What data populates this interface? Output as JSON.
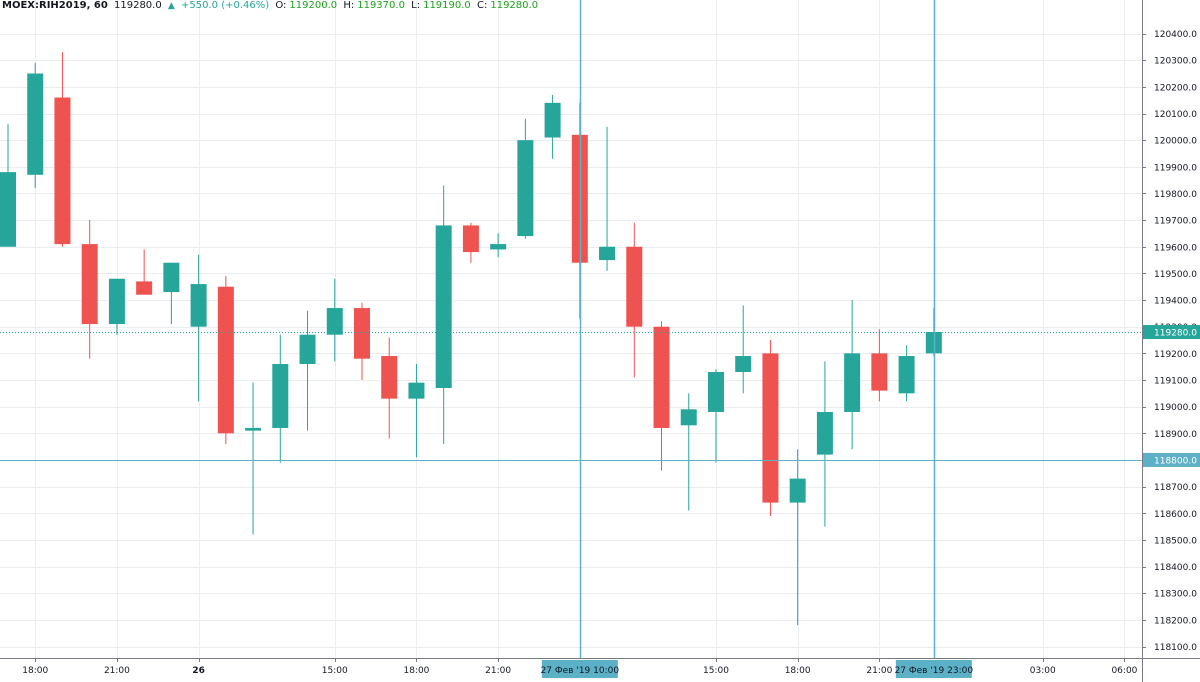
{
  "header": {
    "symbol": "MOEX:RIH2019, 60",
    "last": "119280.0",
    "change_icon": "triangle-up-icon",
    "change": "+550.0 (+0.46%)",
    "open_label": "O:",
    "open": "119200.0",
    "high_label": "H:",
    "high": "119370.0",
    "low_label": "L:",
    "low": "119190.0",
    "close_label": "C:",
    "close": "119280.0"
  },
  "colors": {
    "up": "#26a69a",
    "down": "#ef5350",
    "grid": "#e9edf2",
    "axis_text": "#131722",
    "crosshair": "#5db1c7"
  },
  "chart_data": {
    "type": "candlestick",
    "ylim": [
      118100,
      120450
    ],
    "y_ticks": [
      118100,
      118200,
      118300,
      118400,
      118500,
      118600,
      118700,
      118800,
      118900,
      119000,
      119100,
      119200,
      119300,
      119400,
      119500,
      119600,
      119700,
      119800,
      119900,
      120000,
      120100,
      120200,
      120300,
      120400
    ],
    "y_tick_labels": [
      "118100.0",
      "118200.0",
      "118300.0",
      "118400.0",
      "118500.0",
      "118600.0",
      "118700.0",
      "118800.0",
      "118900.0",
      "119000.0",
      "119100.0",
      "119200.0",
      "119300.0",
      "119400.0",
      "119500.0",
      "119600.0",
      "119700.0",
      "119800.0",
      "119900.0",
      "120000.0",
      "120100.0",
      "120200.0",
      "120300.0",
      "120400.0"
    ],
    "x_tick_labels": [
      {
        "bar": 1,
        "label": "18:00",
        "bold": false
      },
      {
        "bar": 4,
        "label": "21:00",
        "bold": false
      },
      {
        "bar": 7,
        "label": "26",
        "bold": true
      },
      {
        "bar": 12,
        "label": "15:00",
        "bold": false
      },
      {
        "bar": 15,
        "label": "18:00",
        "bold": false
      },
      {
        "bar": 18,
        "label": "21:00",
        "bold": false
      },
      {
        "bar": 26,
        "label": "15:00",
        "bold": false
      },
      {
        "bar": 29,
        "label": "18:00",
        "bold": false
      },
      {
        "bar": 32,
        "label": "21:00",
        "bold": false
      },
      {
        "bar": 38,
        "label": "03:00",
        "bold": false
      },
      {
        "bar": 41,
        "label": "06:00",
        "bold": false
      }
    ],
    "candles": [
      {
        "o": 119600,
        "h": 120060,
        "l": 119600,
        "c": 119880
      },
      {
        "o": 119870,
        "h": 120290,
        "l": 119820,
        "c": 120250
      },
      {
        "o": 120160,
        "h": 120330,
        "l": 119600,
        "c": 119610
      },
      {
        "o": 119610,
        "h": 119700,
        "l": 119180,
        "c": 119310
      },
      {
        "o": 119310,
        "h": 119480,
        "l": 119270,
        "c": 119480
      },
      {
        "o": 119470,
        "h": 119590,
        "l": 119420,
        "c": 119420
      },
      {
        "o": 119430,
        "h": 119540,
        "l": 119310,
        "c": 119540
      },
      {
        "o": 119300,
        "h": 119570,
        "l": 119020,
        "c": 119460
      },
      {
        "o": 119450,
        "h": 119490,
        "l": 118860,
        "c": 118900
      },
      {
        "o": 118910,
        "h": 119090,
        "l": 118520,
        "c": 118920
      },
      {
        "o": 118920,
        "h": 119270,
        "l": 118790,
        "c": 119160
      },
      {
        "o": 119160,
        "h": 119360,
        "l": 118910,
        "c": 119270
      },
      {
        "o": 119270,
        "h": 119480,
        "l": 119170,
        "c": 119370
      },
      {
        "o": 119370,
        "h": 119390,
        "l": 119100,
        "c": 119180
      },
      {
        "o": 119190,
        "h": 119260,
        "l": 118880,
        "c": 119030
      },
      {
        "o": 119030,
        "h": 119160,
        "l": 118810,
        "c": 119090
      },
      {
        "o": 119070,
        "h": 119830,
        "l": 118860,
        "c": 119680
      },
      {
        "o": 119680,
        "h": 119690,
        "l": 119540,
        "c": 119580
      },
      {
        "o": 119590,
        "h": 119650,
        "l": 119560,
        "c": 119610
      },
      {
        "o": 119640,
        "h": 120080,
        "l": 119630,
        "c": 120000
      },
      {
        "o": 120010,
        "h": 120170,
        "l": 119930,
        "c": 120140
      },
      {
        "o": 120020,
        "h": 120140,
        "l": 119330,
        "c": 119540
      },
      {
        "o": 119550,
        "h": 120050,
        "l": 119510,
        "c": 119600
      },
      {
        "o": 119600,
        "h": 119690,
        "l": 119110,
        "c": 119300
      },
      {
        "o": 119300,
        "h": 119320,
        "l": 118760,
        "c": 118920
      },
      {
        "o": 118930,
        "h": 119050,
        "l": 118610,
        "c": 118990
      },
      {
        "o": 118980,
        "h": 119140,
        "l": 118790,
        "c": 119130
      },
      {
        "o": 119130,
        "h": 119380,
        "l": 119050,
        "c": 119190
      },
      {
        "o": 119200,
        "h": 119250,
        "l": 118590,
        "c": 118640
      },
      {
        "o": 118640,
        "h": 118840,
        "l": 118180,
        "c": 118730
      },
      {
        "o": 118820,
        "h": 119170,
        "l": 118550,
        "c": 118980
      },
      {
        "o": 118980,
        "h": 119400,
        "l": 118840,
        "c": 119200
      },
      {
        "o": 119200,
        "h": 119290,
        "l": 119020,
        "c": 119060
      },
      {
        "o": 119050,
        "h": 119230,
        "l": 119020,
        "c": 119190
      },
      {
        "o": 119200,
        "h": 119370,
        "l": 119190,
        "c": 119280
      }
    ],
    "last_price": 119280,
    "last_price_label": "119280.0",
    "crosshair_price": 118800,
    "crosshair_price_label": "118800.0",
    "vertical_markers": [
      {
        "bar": 21,
        "label": "27 Фев '19   10:00"
      },
      {
        "bar": 34,
        "label": "27 Фев '19   23:00"
      }
    ]
  }
}
